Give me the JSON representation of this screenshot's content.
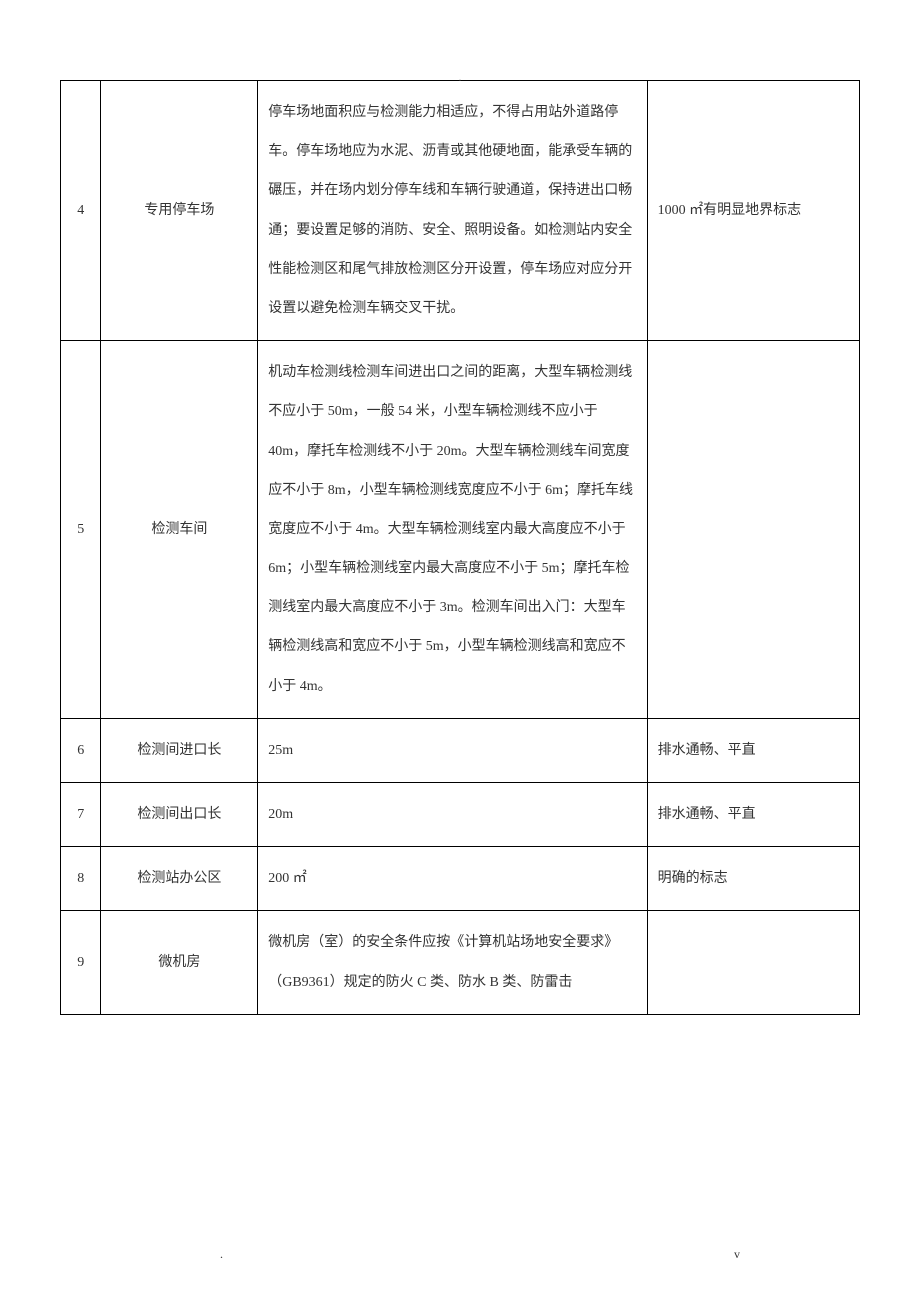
{
  "page_marker_top": ".",
  "footer_left": ".",
  "footer_right": "v",
  "table": {
    "rows": [
      {
        "num": "4",
        "name": "专用停车场",
        "desc": "停车场地面积应与检测能力相适应，不得占用站外道路停车。停车场地应为水泥、沥青或其他硬地面，能承受车辆的碾压，并在场内划分停车线和车辆行驶通道，保持进出口畅通；要设置足够的消防、安全、照明设备。如检测站内安全性能检测区和尾气排放检测区分开设置，停车场应对应分开设置以避免检测车辆交叉干扰。",
        "note": "1000 ㎡有明显地界标志"
      },
      {
        "num": "5",
        "name": "检测车间",
        "desc": "机动车检测线检测车间进出口之间的距离，大型车辆检测线不应小于 50m，一般 54 米，小型车辆检测线不应小于 40m，摩托车检测线不小于 20m。大型车辆检测线车间宽度应不小于 8m，小型车辆检测线宽度应不小于 6m；摩托车线宽度应不小于 4m。大型车辆检测线室内最大高度应不小于 6m；小型车辆检测线室内最大高度应不小于 5m；摩托车检测线室内最大高度应不小于 3m。检测车间出入门：大型车辆检测线高和宽应不小于 5m，小型车辆检测线高和宽应不小于 4m。",
        "note": ""
      },
      {
        "num": "6",
        "name": "检测间进口长",
        "desc": "25m",
        "note": "排水通畅、平直"
      },
      {
        "num": "7",
        "name": "检测间出口长",
        "desc": "20m",
        "note": "排水通畅、平直"
      },
      {
        "num": "8",
        "name": "检测站办公区",
        "desc": "200 ㎡",
        "note": "明确的标志"
      },
      {
        "num": "9",
        "name": "微机房",
        "desc": "微机房（室）的安全条件应按《计算机站场地安全要求》（GB9361）规定的防火 C 类、防水 B 类、防雷击",
        "note": ""
      }
    ]
  }
}
